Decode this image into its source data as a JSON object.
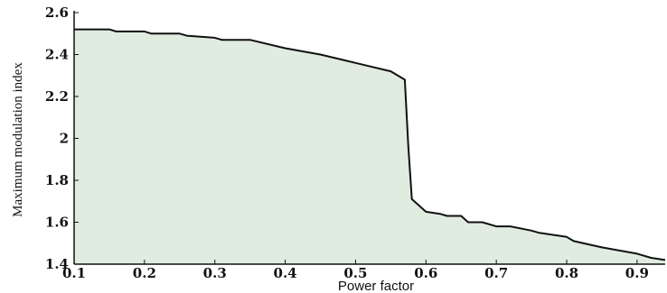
{
  "chart_data": {
    "type": "area",
    "title": "",
    "xlabel": "Power factor",
    "ylabel": "Maximum modulation index",
    "xlim": [
      0.1,
      0.94
    ],
    "ylim": [
      1.4,
      2.6
    ],
    "xticks": [
      0.1,
      0.2,
      0.3,
      0.4,
      0.5,
      0.6,
      0.7,
      0.8,
      0.9
    ],
    "xtick_labels": [
      "0.1",
      "0.2",
      "0.3",
      "0.4",
      "0.5",
      "0.6",
      "0.7",
      "0.8",
      "0.9"
    ],
    "yticks": [
      1.4,
      1.6,
      1.8,
      2.0,
      2.2,
      2.4,
      2.6
    ],
    "ytick_labels": [
      "1.4",
      "1.6",
      "1.8",
      "2",
      "2.2",
      "2.4",
      "2.6"
    ],
    "grid": false,
    "series": [
      {
        "x": [
          0.1,
          0.15,
          0.16,
          0.2,
          0.21,
          0.25,
          0.26,
          0.3,
          0.31,
          0.35,
          0.4,
          0.45,
          0.5,
          0.55,
          0.57,
          0.575,
          0.58,
          0.6,
          0.62,
          0.63,
          0.65,
          0.66,
          0.68,
          0.7,
          0.72,
          0.75,
          0.76,
          0.8,
          0.81,
          0.85,
          0.9,
          0.92,
          0.94
        ],
        "y": [
          2.52,
          2.52,
          2.51,
          2.51,
          2.5,
          2.5,
          2.49,
          2.48,
          2.47,
          2.47,
          2.43,
          2.4,
          2.36,
          2.32,
          2.28,
          1.96,
          1.71,
          1.65,
          1.64,
          1.63,
          1.63,
          1.6,
          1.6,
          1.58,
          1.58,
          1.56,
          1.55,
          1.53,
          1.51,
          1.48,
          1.45,
          1.43,
          1.42
        ]
      }
    ],
    "colors": {
      "fill": "#e1ece1",
      "line": "#111111",
      "axis": "#111111"
    }
  }
}
